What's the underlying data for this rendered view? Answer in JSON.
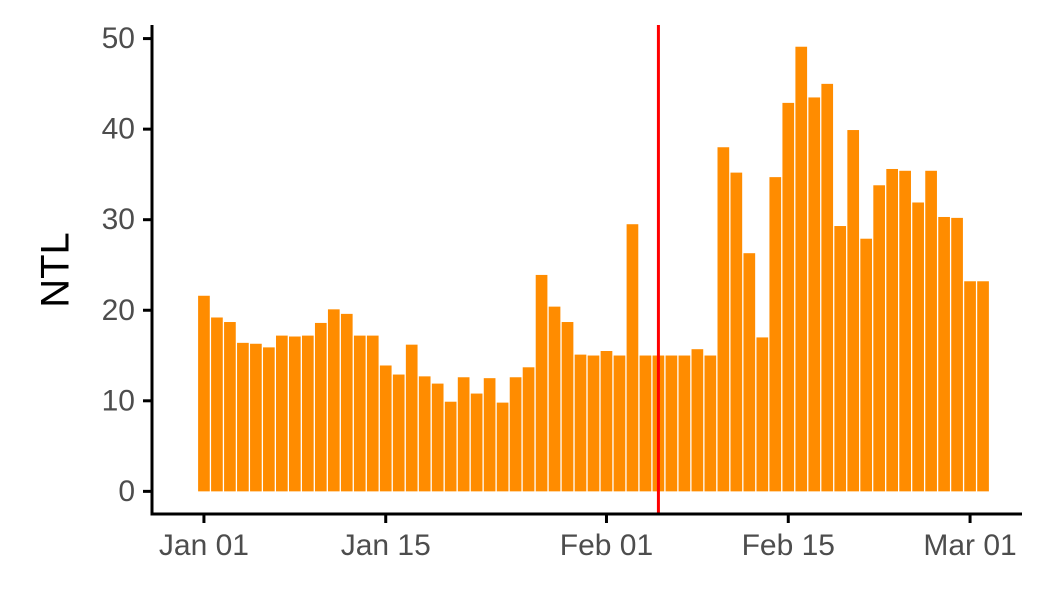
{
  "chart_data": {
    "type": "bar",
    "xlabel": "",
    "ylabel": "NTL",
    "ylim": [
      -2.5,
      51.5
    ],
    "yticks": [
      0,
      10,
      20,
      30,
      40,
      50
    ],
    "x_start_date": "2019-01-01",
    "xlim_dates": [
      "2018-12-28",
      "2019-03-05"
    ],
    "xticks": [
      {
        "date": "2019-01-01",
        "label": "Jan 01"
      },
      {
        "date": "2019-01-15",
        "label": "Jan 15"
      },
      {
        "date": "2019-02-01",
        "label": "Feb 01"
      },
      {
        "date": "2019-02-15",
        "label": "Feb 15"
      },
      {
        "date": "2019-03-01",
        "label": "Mar 01"
      }
    ],
    "vline": {
      "date": "2019-02-05",
      "color": "#ff0000"
    },
    "grid": false,
    "legend": "none",
    "bar_color": "#ff8c00",
    "values": [
      21.6,
      19.2,
      18.7,
      16.4,
      16.3,
      15.9,
      17.2,
      17.1,
      17.2,
      18.6,
      20.1,
      19.6,
      17.2,
      17.2,
      13.9,
      12.9,
      16.2,
      12.7,
      11.9,
      9.9,
      12.6,
      10.8,
      12.5,
      9.8,
      12.6,
      13.7,
      23.9,
      20.4,
      18.7,
      15.1,
      15.0,
      15.5,
      15.0,
      29.5,
      15.0,
      15.0,
      15.0,
      15.0,
      15.7,
      15.0,
      38.0,
      35.2,
      26.3,
      17.0,
      34.7,
      42.9,
      49.1,
      43.5,
      45.0,
      29.3,
      39.9,
      27.9,
      33.8,
      35.6,
      35.4,
      31.9,
      35.4,
      30.3,
      30.2,
      23.2,
      23.2
    ]
  }
}
